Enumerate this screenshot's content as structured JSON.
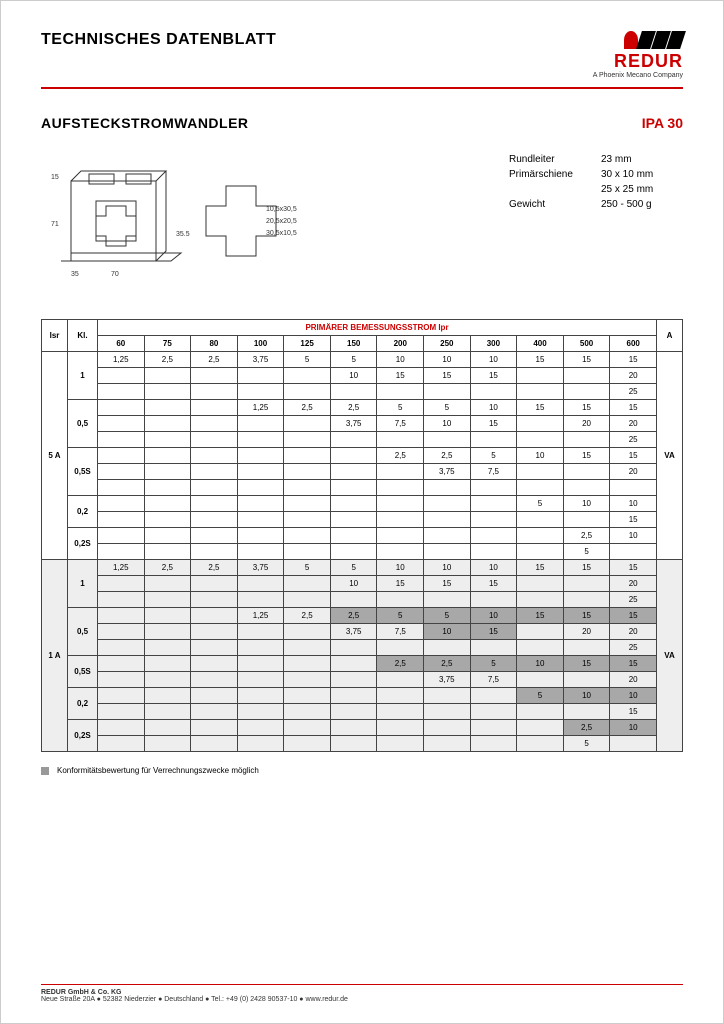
{
  "header": {
    "title": "TECHNISCHES DATENBLATT"
  },
  "logo": {
    "name": "REDUR",
    "sub": "A Phoenix Mecano Company"
  },
  "subheader": {
    "product": "AUFSTECKSTROMWANDLER",
    "model": "IPA 30"
  },
  "drawing": {
    "dims": {
      "h1": "15",
      "h2": "71",
      "w_base": "35",
      "w_body": "70",
      "inner_h": "35.5",
      "slot1": "10,5x30,5",
      "slot2": "20,5x20,5",
      "slot3": "30,5x10,5"
    }
  },
  "specs": {
    "rows": [
      {
        "label": "Rundleiter",
        "value": "23 mm"
      },
      {
        "label": "Primärschiene",
        "value": "30 x 10 mm"
      },
      {
        "label": "",
        "value": "25 x 25 mm"
      },
      {
        "label": "Gewicht",
        "value": "250 - 500 g"
      }
    ]
  },
  "table": {
    "header_primary": "PRIMÄRER BEMESSUNGSSTROM Ipr",
    "col_isr": "Isr",
    "col_kl": "Kl.",
    "col_a": "A",
    "unit_right": "VA",
    "currents": [
      "60",
      "75",
      "80",
      "100",
      "125",
      "150",
      "200",
      "250",
      "300",
      "400",
      "500",
      "600"
    ],
    "sections": [
      {
        "isr": "5 A",
        "klasses": [
          {
            "kl": "1",
            "rows": [
              {
                "v": [
                  "1,25",
                  "2,5",
                  "2,5",
                  "3,75",
                  "5",
                  "5",
                  "10",
                  "10",
                  "10",
                  "15",
                  "15",
                  "15"
                ],
                "sh": []
              },
              {
                "v": [
                  "",
                  "",
                  "",
                  "",
                  "",
                  "10",
                  "15",
                  "15",
                  "15",
                  "",
                  "",
                  "20"
                ],
                "sh": []
              },
              {
                "v": [
                  "",
                  "",
                  "",
                  "",
                  "",
                  "",
                  "",
                  "",
                  "",
                  "",
                  "",
                  "25"
                ],
                "sh": []
              }
            ]
          },
          {
            "kl": "0,5",
            "rows": [
              {
                "v": [
                  "",
                  "",
                  "",
                  "1,25",
                  "2,5",
                  "2,5",
                  "5",
                  "5",
                  "10",
                  "15",
                  "15",
                  "15"
                ],
                "sh": [
                  5,
                  6,
                  7,
                  8,
                  9,
                  10,
                  11
                ]
              },
              {
                "v": [
                  "",
                  "",
                  "",
                  "",
                  "",
                  "3,75",
                  "7,5",
                  "10",
                  "15",
                  "",
                  "20",
                  "20"
                ],
                "sh": [
                  7,
                  8
                ]
              },
              {
                "v": [
                  "",
                  "",
                  "",
                  "",
                  "",
                  "",
                  "",
                  "",
                  "",
                  "",
                  "",
                  "25"
                ],
                "sh": []
              }
            ]
          },
          {
            "kl": "0,5S",
            "rows": [
              {
                "v": [
                  "",
                  "",
                  "",
                  "",
                  "",
                  "",
                  "2,5",
                  "2,5",
                  "5",
                  "10",
                  "15",
                  "15"
                ],
                "sh": [
                  6,
                  7,
                  8,
                  9,
                  10,
                  11
                ]
              },
              {
                "v": [
                  "",
                  "",
                  "",
                  "",
                  "",
                  "",
                  "",
                  "3,75",
                  "7,5",
                  "",
                  "",
                  "20"
                ],
                "sh": []
              },
              {
                "v": [
                  "",
                  "",
                  "",
                  "",
                  "",
                  "",
                  "",
                  "",
                  "",
                  "",
                  "",
                  ""
                ],
                "sh": []
              }
            ]
          },
          {
            "kl": "0,2",
            "rows": [
              {
                "v": [
                  "",
                  "",
                  "",
                  "",
                  "",
                  "",
                  "",
                  "",
                  "",
                  "5",
                  "10",
                  "10"
                ],
                "sh": [
                  9,
                  10,
                  11
                ]
              },
              {
                "v": [
                  "",
                  "",
                  "",
                  "",
                  "",
                  "",
                  "",
                  "",
                  "",
                  "",
                  "",
                  "15"
                ],
                "sh": []
              }
            ]
          },
          {
            "kl": "0,2S",
            "rows": [
              {
                "v": [
                  "",
                  "",
                  "",
                  "",
                  "",
                  "",
                  "",
                  "",
                  "",
                  "",
                  "2,5",
                  "10"
                ],
                "sh": [
                  10,
                  11
                ]
              },
              {
                "v": [
                  "",
                  "",
                  "",
                  "",
                  "",
                  "",
                  "",
                  "",
                  "",
                  "",
                  "5",
                  ""
                ],
                "sh": []
              }
            ]
          }
        ]
      },
      {
        "isr": "1 A",
        "klasses": [
          {
            "kl": "1",
            "rows": [
              {
                "v": [
                  "1,25",
                  "2,5",
                  "2,5",
                  "3,75",
                  "5",
                  "5",
                  "10",
                  "10",
                  "10",
                  "15",
                  "15",
                  "15"
                ],
                "sh": []
              },
              {
                "v": [
                  "",
                  "",
                  "",
                  "",
                  "",
                  "10",
                  "15",
                  "15",
                  "15",
                  "",
                  "",
                  "20"
                ],
                "sh": []
              },
              {
                "v": [
                  "",
                  "",
                  "",
                  "",
                  "",
                  "",
                  "",
                  "",
                  "",
                  "",
                  "",
                  "25"
                ],
                "sh": []
              }
            ]
          },
          {
            "kl": "0,5",
            "rows": [
              {
                "v": [
                  "",
                  "",
                  "",
                  "1,25",
                  "2,5",
                  "2,5",
                  "5",
                  "5",
                  "10",
                  "15",
                  "15",
                  "15"
                ],
                "sh": [
                  5,
                  6,
                  7,
                  8,
                  9,
                  10,
                  11
                ]
              },
              {
                "v": [
                  "",
                  "",
                  "",
                  "",
                  "",
                  "3,75",
                  "7,5",
                  "10",
                  "15",
                  "",
                  "20",
                  "20"
                ],
                "sh": [
                  7,
                  8
                ]
              },
              {
                "v": [
                  "",
                  "",
                  "",
                  "",
                  "",
                  "",
                  "",
                  "",
                  "",
                  "",
                  "",
                  "25"
                ],
                "sh": []
              }
            ]
          },
          {
            "kl": "0,5S",
            "rows": [
              {
                "v": [
                  "",
                  "",
                  "",
                  "",
                  "",
                  "",
                  "2,5",
                  "2,5",
                  "5",
                  "10",
                  "15",
                  "15"
                ],
                "sh": [
                  6,
                  7,
                  8,
                  9,
                  10,
                  11
                ]
              },
              {
                "v": [
                  "",
                  "",
                  "",
                  "",
                  "",
                  "",
                  "",
                  "3,75",
                  "7,5",
                  "",
                  "",
                  "20"
                ],
                "sh": []
              }
            ]
          },
          {
            "kl": "0,2",
            "rows": [
              {
                "v": [
                  "",
                  "",
                  "",
                  "",
                  "",
                  "",
                  "",
                  "",
                  "",
                  "5",
                  "10",
                  "10"
                ],
                "sh": [
                  9,
                  10,
                  11
                ]
              },
              {
                "v": [
                  "",
                  "",
                  "",
                  "",
                  "",
                  "",
                  "",
                  "",
                  "",
                  "",
                  "",
                  "15"
                ],
                "sh": []
              }
            ]
          },
          {
            "kl": "0,2S",
            "rows": [
              {
                "v": [
                  "",
                  "",
                  "",
                  "",
                  "",
                  "",
                  "",
                  "",
                  "",
                  "",
                  "2,5",
                  "10"
                ],
                "sh": [
                  10,
                  11
                ]
              },
              {
                "v": [
                  "",
                  "",
                  "",
                  "",
                  "",
                  "",
                  "",
                  "",
                  "",
                  "",
                  "5",
                  ""
                ],
                "sh": []
              }
            ]
          }
        ]
      }
    ]
  },
  "footnote": "Konformitätsbewertung für Verrechnungszwecke möglich",
  "footer": {
    "company": "REDUR GmbH & Co. KG",
    "addr": "Neue Straße 20A ● 52382 Niederzier ● Deutschland ● Tel.: +49 (0) 2428 90537-10 ● www.redur.de"
  }
}
